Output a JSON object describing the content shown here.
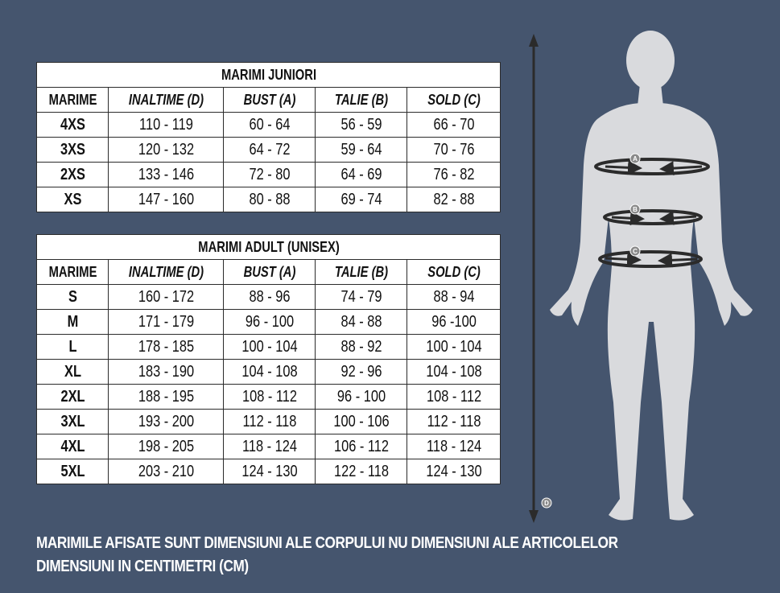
{
  "junior": {
    "title": "MARIMI JUNIORI",
    "headers": [
      "MARIME",
      "INALTIME (D)",
      "BUST (A)",
      "TALIE (B)",
      "SOLD (C)"
    ],
    "rows": [
      [
        "4XS",
        "110 - 119",
        "60 - 64",
        "56 - 59",
        "66 - 70"
      ],
      [
        "3XS",
        "120 - 132",
        "64 - 72",
        "59 - 64",
        "70 - 76"
      ],
      [
        "2XS",
        "133 - 146",
        "72 - 80",
        "64 - 69",
        "76 - 82"
      ],
      [
        "XS",
        "147 - 160",
        "80 - 88",
        "69 - 74",
        "82 - 88"
      ]
    ]
  },
  "adult": {
    "title": "MARIMI ADULT (UNISEX)",
    "headers": [
      "MARIME",
      "INALTIME (D)",
      "BUST (A)",
      "TALIE (B)",
      "SOLD (C)"
    ],
    "rows": [
      [
        "S",
        "160 - 172",
        "88 - 96",
        "74 - 79",
        "88 - 94"
      ],
      [
        "M",
        "171 - 179",
        "96 - 100",
        "84 - 88",
        "96 -100"
      ],
      [
        "L",
        "178 - 185",
        "100 - 104",
        "88 - 92",
        "100 - 104"
      ],
      [
        "XL",
        "183 - 190",
        "104 - 108",
        "92 - 96",
        "104 - 108"
      ],
      [
        "2XL",
        "188 - 195",
        "108 - 112",
        "96 - 100",
        "108 - 112"
      ],
      [
        "3XL",
        "193 - 200",
        "112 - 118",
        "100 - 106",
        "112 - 118"
      ],
      [
        "4XL",
        "198 - 205",
        "118 - 124",
        "106 - 112",
        "118 - 124"
      ],
      [
        "5XL",
        "203 - 210",
        "124 - 130",
        "122 - 118",
        "124 - 130"
      ]
    ]
  },
  "notes": {
    "line1": "MARIMILE AFISATE SUNT DIMENSIUNI ALE CORPULUI NU DIMENSIUNI ALE ARTICOLELOR",
    "line2": "DIMENSIUNI IN CENTIMETRI (CM)"
  },
  "figure": {
    "markers": {
      "a": "A",
      "b": "B",
      "c": "C",
      "d": "D"
    },
    "silhouette_color": "#d9dadd",
    "arrow_color": "#2b2b2b"
  }
}
